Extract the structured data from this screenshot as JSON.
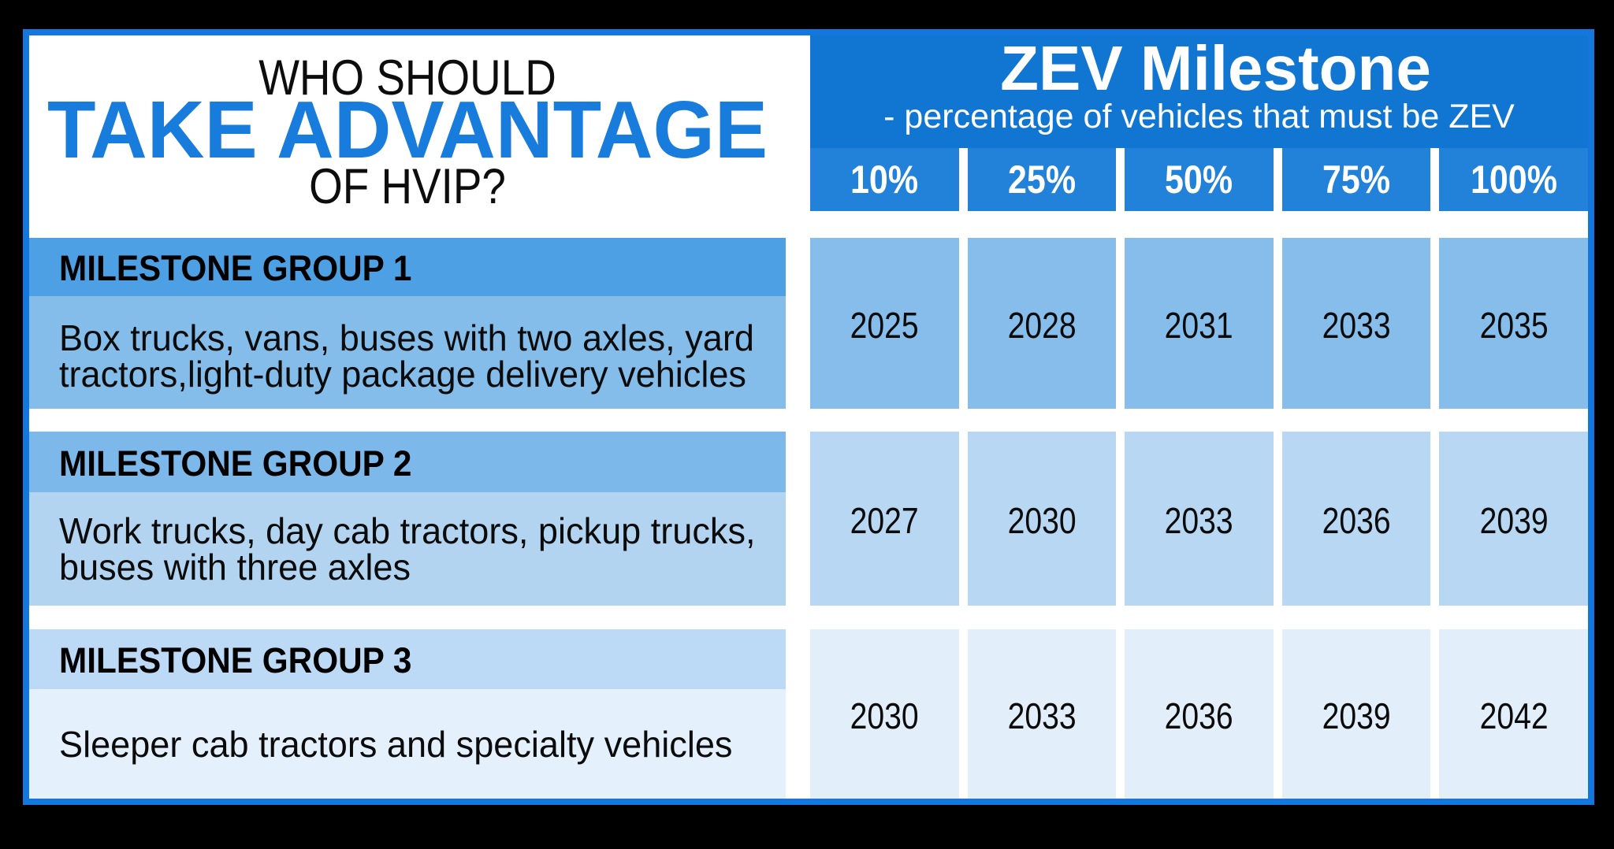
{
  "left_panel": {
    "title_line1": "WHO SHOULD",
    "title_line2": "TAKE ADVANTAGE",
    "title_line3": "OF HVIP?"
  },
  "zev_header": {
    "title": "ZEV Milestone",
    "subtitle": "- percentage of vehicles that must be ZEV"
  },
  "percent_headers": [
    "10%",
    "25%",
    "50%",
    "75%",
    "100%"
  ],
  "groups": [
    {
      "name": "MILESTONE GROUP 1",
      "description": "Box trucks, vans, buses with two axles, yard tractors,light-duty package delivery vehicles",
      "years": [
        "2025",
        "2028",
        "2031",
        "2033",
        "2035"
      ]
    },
    {
      "name": "MILESTONE GROUP 2",
      "description": "Work trucks, day cab tractors, pickup trucks, buses with three axles",
      "years": [
        "2027",
        "2030",
        "2033",
        "2036",
        "2039"
      ]
    },
    {
      "name": "MILESTONE GROUP 3",
      "description": "Sleeper cab tractors and specialty vehicles",
      "years": [
        "2030",
        "2033",
        "2036",
        "2039",
        "2042"
      ]
    }
  ],
  "chart_data": {
    "type": "table",
    "title": "ZEV Milestone - percentage of vehicles that must be ZEV",
    "columns": [
      "10%",
      "25%",
      "50%",
      "75%",
      "100%"
    ],
    "rows": [
      {
        "group": "MILESTONE GROUP 1",
        "vehicles": "Box trucks, vans, buses with two axles, yard tractors,light-duty package delivery vehicles",
        "years": [
          2025,
          2028,
          2031,
          2033,
          2035
        ]
      },
      {
        "group": "MILESTONE GROUP 2",
        "vehicles": "Work trucks, day cab tractors, pickup trucks, buses with three axles",
        "years": [
          2027,
          2030,
          2033,
          2036,
          2039
        ]
      },
      {
        "group": "MILESTONE GROUP 3",
        "vehicles": "Sleeper cab tractors and specialty vehicles",
        "years": [
          2030,
          2033,
          2036,
          2039,
          2042
        ]
      }
    ]
  },
  "colors": {
    "border": "#1377DE",
    "header": "#1175D2",
    "pct": "#2281D8",
    "accent": "#187CDD",
    "g1_head": "#4DA0E4",
    "g1_body": "#85BDEA",
    "g1_cell": "#86BDEA",
    "g2_head": "#7DB8EA",
    "g2_body": "#B2D4F0",
    "g2_cell": "#B7D7F3",
    "g3_head": "#BCDAF5",
    "g3_body": "#E4F0FC",
    "g3_cell": "#E2EEFA"
  }
}
